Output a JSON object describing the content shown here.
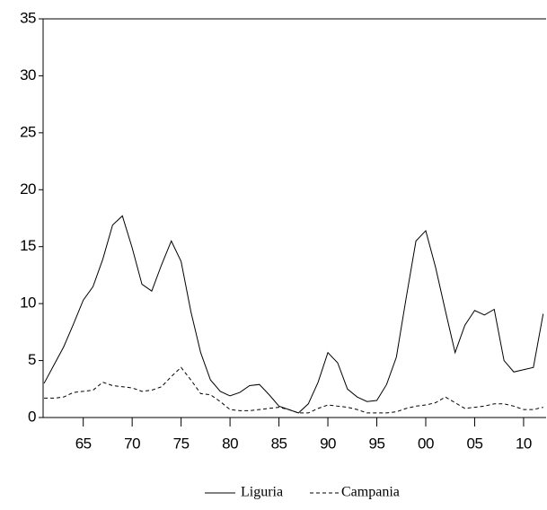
{
  "chart_data": {
    "type": "line",
    "x": [
      1961,
      1962,
      1963,
      1964,
      1965,
      1966,
      1967,
      1968,
      1969,
      1970,
      1971,
      1972,
      1973,
      1974,
      1975,
      1976,
      1977,
      1978,
      1979,
      1980,
      1981,
      1982,
      1983,
      1984,
      1985,
      1986,
      1987,
      1988,
      1989,
      1990,
      1991,
      1992,
      1993,
      1994,
      1995,
      1996,
      1997,
      1998,
      1999,
      2000,
      2001,
      2002,
      2003,
      2004,
      2005,
      2006,
      2007,
      2008,
      2009,
      2010,
      2011,
      2012
    ],
    "series": [
      {
        "name": "Liguria",
        "color": "#000000",
        "line_style": "solid",
        "values": [
          3.0,
          4.6,
          6.2,
          8.2,
          10.3,
          11.5,
          13.9,
          16.9,
          17.7,
          14.9,
          11.7,
          11.1,
          13.4,
          15.5,
          13.7,
          9.3,
          5.7,
          3.3,
          2.3,
          1.9,
          2.2,
          2.8,
          2.9,
          2.0,
          1.0,
          0.7,
          0.4,
          1.2,
          3.1,
          5.7,
          4.8,
          2.5,
          1.8,
          1.4,
          1.5,
          2.9,
          5.3,
          10.5,
          15.5,
          16.4,
          13.2,
          9.4,
          5.7,
          8.1,
          9.4,
          9.0,
          9.5,
          5.0,
          4.0,
          4.2,
          4.4,
          9.1
        ]
      },
      {
        "name": "Campania",
        "color": "#000000",
        "line_style": "dashed",
        "values": [
          1.7,
          1.7,
          1.8,
          2.2,
          2.3,
          2.4,
          3.1,
          2.8,
          2.7,
          2.6,
          2.3,
          2.4,
          2.7,
          3.6,
          4.4,
          3.3,
          2.1,
          2.0,
          1.4,
          0.7,
          0.6,
          0.6,
          0.7,
          0.8,
          0.9,
          0.7,
          0.4,
          0.4,
          0.8,
          1.1,
          1.0,
          0.9,
          0.7,
          0.4,
          0.4,
          0.4,
          0.5,
          0.8,
          1.0,
          1.1,
          1.3,
          1.8,
          1.3,
          0.8,
          0.9,
          1.0,
          1.2,
          1.2,
          1.0,
          0.7,
          0.7,
          0.9
        ]
      }
    ],
    "xlim": [
      1960.9,
      2012.3
    ],
    "xticks": [
      {
        "value": 1965,
        "label": "65"
      },
      {
        "value": 1970,
        "label": "70"
      },
      {
        "value": 1975,
        "label": "75"
      },
      {
        "value": 1980,
        "label": "80"
      },
      {
        "value": 1985,
        "label": "85"
      },
      {
        "value": 1990,
        "label": "90"
      },
      {
        "value": 1995,
        "label": "95"
      },
      {
        "value": 2000,
        "label": "00"
      },
      {
        "value": 2005,
        "label": "05"
      },
      {
        "value": 2010,
        "label": "10"
      }
    ],
    "ylim": [
      0,
      35
    ],
    "yticks": [
      0,
      5,
      10,
      15,
      20,
      25,
      30,
      35
    ],
    "grid": false,
    "legend": "bottom"
  }
}
